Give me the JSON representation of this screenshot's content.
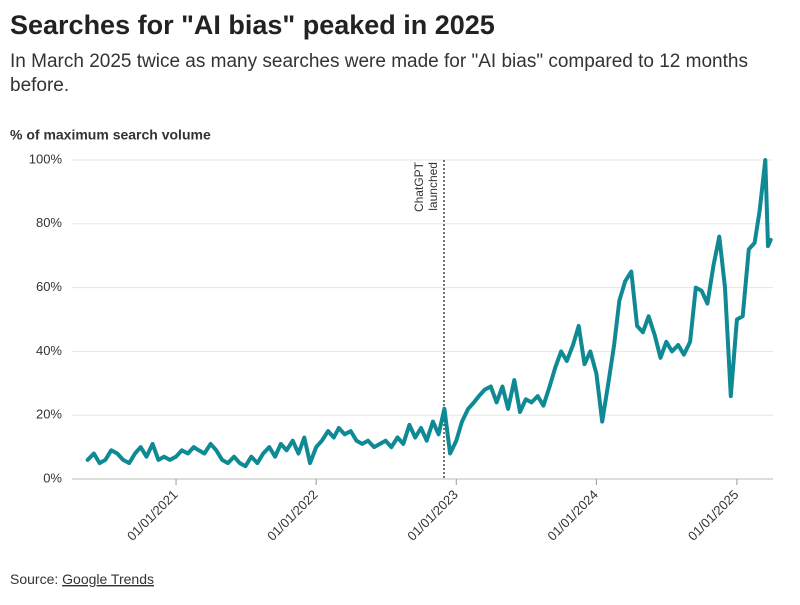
{
  "chart_data": {
    "type": "line",
    "title": "Searches for \"AI bias\" peaked in 2025",
    "subtitle": "In March 2025 twice as many searches were made for \"AI bias\" compared to 12 months before.",
    "y_axis_label": "% of maximum search volume",
    "source_prefix": "Source:",
    "source_link": "Google Trends",
    "annotation": {
      "x": "2022-11-30",
      "lines": [
        "ChatGPT",
        "launched"
      ]
    },
    "xlim": [
      "2020-04-05",
      "2025-04-05"
    ],
    "xticks": [
      {
        "value": "2021-01-01",
        "label": "01/01/2021"
      },
      {
        "value": "2022-01-01",
        "label": "01/01/2022"
      },
      {
        "value": "2023-01-01",
        "label": "01/01/2023"
      },
      {
        "value": "2024-01-01",
        "label": "01/01/2024"
      },
      {
        "value": "2025-01-01",
        "label": "01/01/2025"
      }
    ],
    "ylim": [
      0,
      100
    ],
    "yticks": [
      {
        "value": 0,
        "label": "0%"
      },
      {
        "value": 20,
        "label": "20%"
      },
      {
        "value": 40,
        "label": "40%"
      },
      {
        "value": 60,
        "label": "60%"
      },
      {
        "value": 80,
        "label": "80%"
      },
      {
        "value": 100,
        "label": "100%"
      }
    ],
    "grid": true,
    "color": "#0f8a94",
    "x": [
      "2020-05-16",
      "2020-06-01",
      "2020-06-16",
      "2020-07-01",
      "2020-07-16",
      "2020-08-01",
      "2020-08-16",
      "2020-09-01",
      "2020-09-16",
      "2020-10-01",
      "2020-10-16",
      "2020-11-01",
      "2020-11-16",
      "2020-12-01",
      "2020-12-16",
      "2021-01-01",
      "2021-01-16",
      "2021-02-01",
      "2021-02-16",
      "2021-03-01",
      "2021-03-16",
      "2021-04-01",
      "2021-04-16",
      "2021-05-01",
      "2021-05-16",
      "2021-06-01",
      "2021-06-16",
      "2021-07-01",
      "2021-07-16",
      "2021-08-01",
      "2021-08-16",
      "2021-09-01",
      "2021-09-16",
      "2021-10-01",
      "2021-10-16",
      "2021-11-01",
      "2021-11-16",
      "2021-12-01",
      "2021-12-16",
      "2022-01-01",
      "2022-01-16",
      "2022-02-01",
      "2022-02-16",
      "2022-03-01",
      "2022-03-16",
      "2022-04-01",
      "2022-04-16",
      "2022-05-01",
      "2022-05-16",
      "2022-06-01",
      "2022-06-16",
      "2022-07-01",
      "2022-07-16",
      "2022-08-01",
      "2022-08-16",
      "2022-09-01",
      "2022-09-16",
      "2022-10-01",
      "2022-10-16",
      "2022-11-01",
      "2022-11-16",
      "2022-12-01",
      "2022-12-16",
      "2023-01-01",
      "2023-01-16",
      "2023-02-01",
      "2023-02-16",
      "2023-03-01",
      "2023-03-16",
      "2023-04-01",
      "2023-04-16",
      "2023-05-01",
      "2023-05-16",
      "2023-06-01",
      "2023-06-16",
      "2023-07-01",
      "2023-07-16",
      "2023-08-01",
      "2023-08-16",
      "2023-09-01",
      "2023-09-16",
      "2023-10-01",
      "2023-10-16",
      "2023-11-01",
      "2023-11-16",
      "2023-12-01",
      "2023-12-16",
      "2024-01-01",
      "2024-01-16",
      "2024-02-01",
      "2024-02-16",
      "2024-03-01",
      "2024-03-16",
      "2024-04-01",
      "2024-04-16",
      "2024-05-01",
      "2024-05-16",
      "2024-06-01",
      "2024-06-16",
      "2024-07-01",
      "2024-07-16",
      "2024-08-01",
      "2024-08-16",
      "2024-09-01",
      "2024-09-16",
      "2024-10-01",
      "2024-10-16",
      "2024-11-01",
      "2024-11-16",
      "2024-12-01",
      "2024-12-16",
      "2025-01-01",
      "2025-01-16",
      "2025-02-01",
      "2025-02-16",
      "2025-03-01",
      "2025-03-16",
      "2025-03-23",
      "2025-03-30"
    ],
    "values": [
      6,
      8,
      5,
      6,
      9,
      8,
      6,
      5,
      8,
      10,
      7,
      11,
      6,
      7,
      6,
      7,
      9,
      8,
      10,
      9,
      8,
      11,
      9,
      6,
      5,
      7,
      5,
      4,
      7,
      5,
      8,
      10,
      7,
      11,
      9,
      12,
      8,
      13,
      5,
      10,
      12,
      15,
      13,
      16,
      14,
      15,
      12,
      11,
      12,
      10,
      11,
      12,
      10,
      13,
      11,
      17,
      13,
      16,
      12,
      18,
      14,
      22,
      8,
      12,
      18,
      22,
      24,
      26,
      28,
      29,
      24,
      29,
      22,
      31,
      21,
      25,
      24,
      26,
      23,
      29,
      35,
      40,
      37,
      42,
      48,
      36,
      40,
      33,
      18,
      30,
      42,
      56,
      62,
      65,
      48,
      46,
      51,
      45,
      38,
      43,
      40,
      42,
      39,
      43,
      60,
      59,
      55,
      67,
      76,
      60,
      26,
      50,
      51,
      72,
      74,
      84,
      100,
      73,
      75
    ]
  }
}
